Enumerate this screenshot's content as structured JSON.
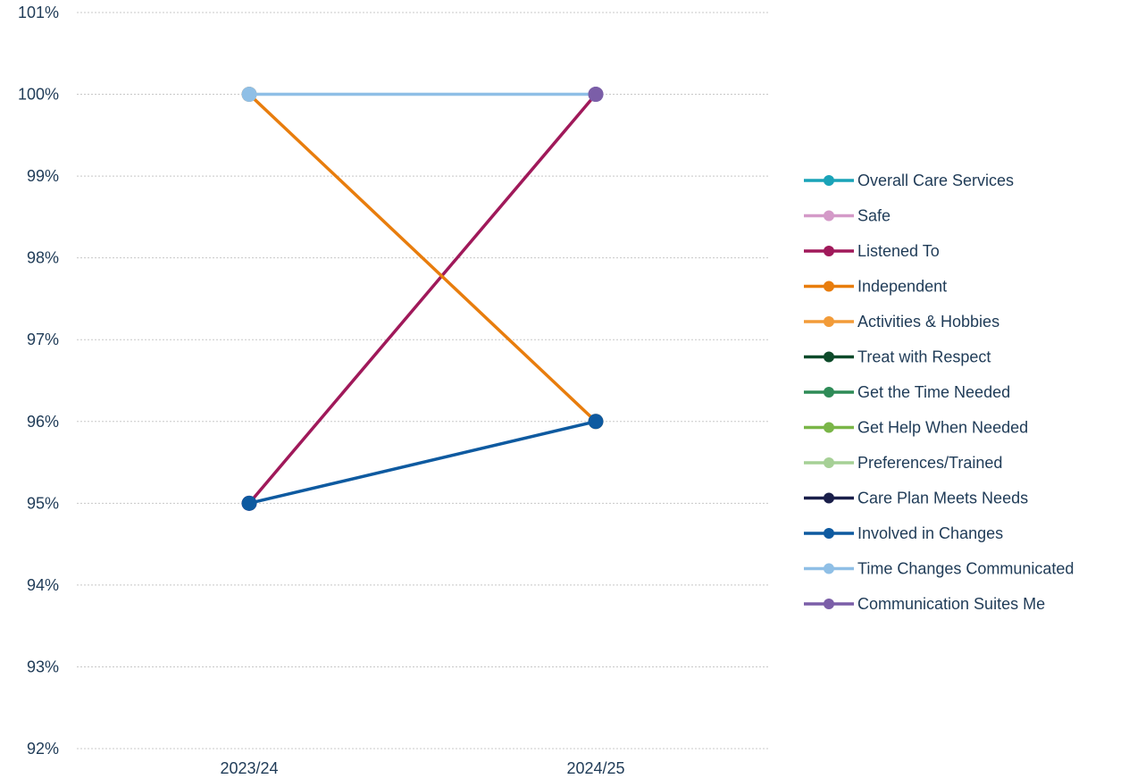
{
  "chart_data": {
    "type": "line",
    "categories": [
      "2023/24",
      "2024/25"
    ],
    "ylim": [
      0.92,
      1.01
    ],
    "y_ticks": [
      {
        "value": 0.92,
        "label": "92%"
      },
      {
        "value": 0.93,
        "label": "93%"
      },
      {
        "value": 0.94,
        "label": "94%"
      },
      {
        "value": 0.95,
        "label": "95%"
      },
      {
        "value": 0.96,
        "label": "96%"
      },
      {
        "value": 0.97,
        "label": "97%"
      },
      {
        "value": 0.98,
        "label": "98%"
      },
      {
        "value": 0.99,
        "label": "99%"
      },
      {
        "value": 1.0,
        "label": "100%"
      },
      {
        "value": 1.01,
        "label": "101%"
      }
    ],
    "grid": true,
    "legend_position": "right",
    "series": [
      {
        "name": "Overall Care Services",
        "color": "#1aa3b8",
        "values": [
          null,
          null
        ]
      },
      {
        "name": "Safe",
        "color": "#d49ac8",
        "values": [
          null,
          null
        ]
      },
      {
        "name": "Listened To",
        "color": "#a0195a",
        "values": [
          0.95,
          1.0
        ]
      },
      {
        "name": "Independent",
        "color": "#e87d0d",
        "values": [
          1.0,
          0.96
        ]
      },
      {
        "name": "Activities & Hobbies",
        "color": "#f29b38",
        "values": [
          null,
          null
        ]
      },
      {
        "name": "Treat with Respect",
        "color": "#0d4a2a",
        "values": [
          null,
          null
        ]
      },
      {
        "name": "Get the Time Needed",
        "color": "#2e8b57",
        "values": [
          null,
          null
        ]
      },
      {
        "name": "Get Help When Needed",
        "color": "#7ab648",
        "values": [
          null,
          null
        ]
      },
      {
        "name": "Preferences/Trained",
        "color": "#a6d096",
        "values": [
          null,
          null
        ]
      },
      {
        "name": "Care Plan Meets Needs",
        "color": "#1a1f4a",
        "values": [
          null,
          null
        ]
      },
      {
        "name": "Involved in Changes",
        "color": "#0e5aa0",
        "values": [
          0.95,
          0.96
        ]
      },
      {
        "name": "Time Changes Communicated",
        "color": "#8fbfe6",
        "values": [
          1.0,
          1.0
        ]
      },
      {
        "name": "Communication Suites Me",
        "color": "#7b5ea8",
        "values": [
          null,
          1.0
        ]
      }
    ]
  }
}
